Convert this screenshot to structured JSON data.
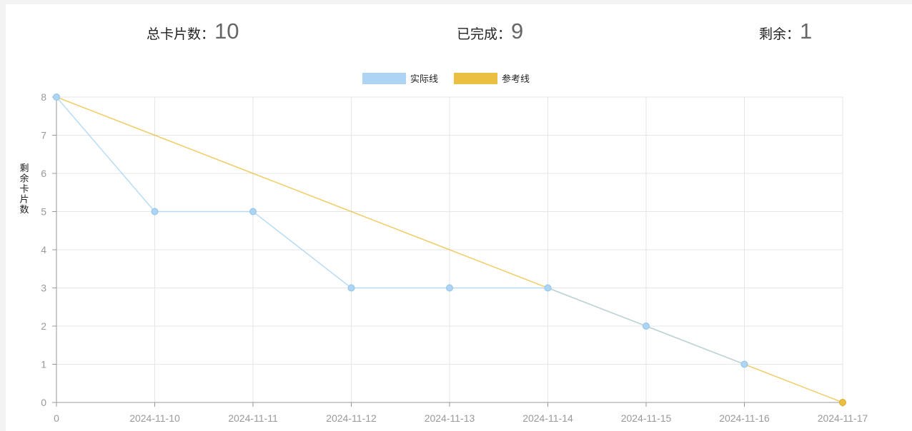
{
  "stats": {
    "total_label": "总卡片数：",
    "total_value": "10",
    "done_label": "已完成：",
    "done_value": "9",
    "remaining_label": "剩余：",
    "remaining_value": "1"
  },
  "chart_data": {
    "type": "line",
    "categories": [
      "0",
      "2024-11-10",
      "2024-11-11",
      "2024-11-12",
      "2024-11-13",
      "2024-11-14",
      "2024-11-15",
      "2024-11-16",
      "2024-11-17"
    ],
    "series": [
      {
        "name": "实际线",
        "values": [
          8,
          5,
          5,
          3,
          3,
          3,
          2,
          1,
          null
        ],
        "color": "#add5f3"
      },
      {
        "name": "参考线",
        "values": [
          8,
          7,
          6,
          5,
          4,
          3,
          2,
          1,
          0
        ],
        "color": "#ebc042"
      }
    ],
    "xlabel": "",
    "ylabel": "剩余卡片数",
    "ylim": [
      0,
      8
    ],
    "yticks": [
      "0",
      "1",
      "2",
      "3",
      "4",
      "5",
      "6",
      "7",
      "8"
    ],
    "grid": true,
    "legend_position": "top-center"
  }
}
